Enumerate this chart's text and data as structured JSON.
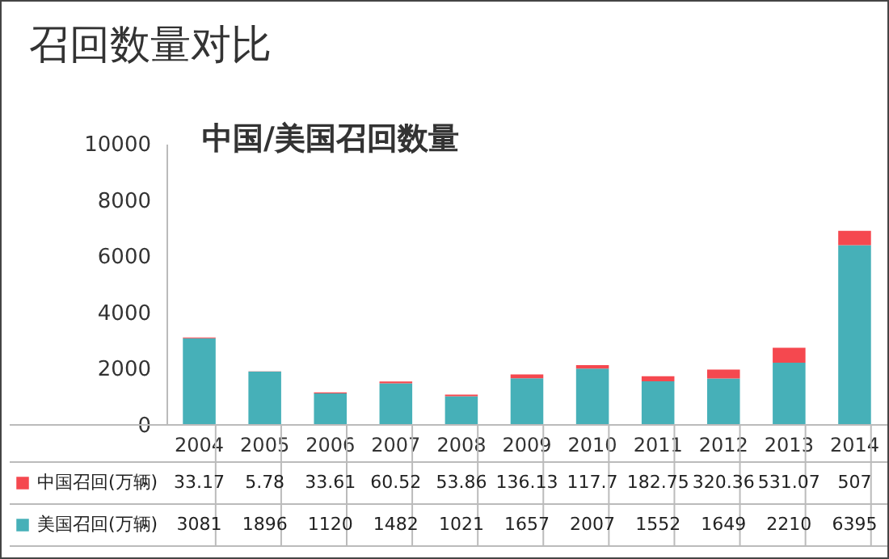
{
  "chart_data": {
    "type": "bar",
    "title": "召回数量对比",
    "subtitle": "中国/美国召回数量",
    "stacked": true,
    "data_labels": true,
    "legend": "bottom left",
    "categories": [
      "2004",
      "2005",
      "2006",
      "2007",
      "2008",
      "2009",
      "2010",
      "2011",
      "2012",
      "2013",
      "2014"
    ],
    "series": [
      {
        "name": "美国召回(万辆)",
        "color": "#46b0b8",
        "values": [
          3081,
          1896,
          1120,
          1482,
          1021,
          1657,
          2007,
          1552,
          1649,
          2210,
          6395
        ]
      },
      {
        "name": "中国召回(万辆)",
        "color": "#f5484f",
        "values": [
          33.17,
          5.78,
          33.61,
          60.52,
          53.86,
          136.13,
          117.7,
          182.75,
          320.36,
          531.07,
          507
        ]
      }
    ],
    "ylim": [
      0,
      10000
    ],
    "yticks": [
      0,
      2000,
      4000,
      6000,
      8000,
      10000
    ]
  }
}
